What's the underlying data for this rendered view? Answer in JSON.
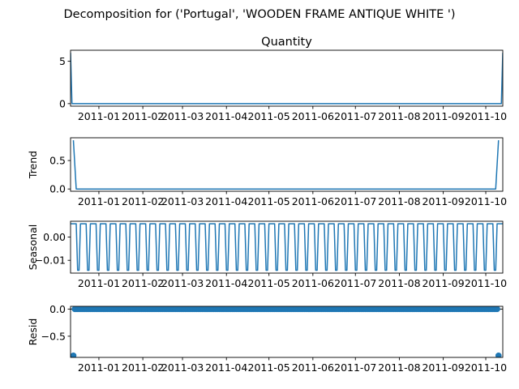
{
  "suptitle": "Decomposition for ('Portugal', 'WOODEN FRAME ANTIQUE WHITE ')",
  "colors": {
    "series": "#1f77b4",
    "axis": "#000000"
  },
  "chart_data": [
    {
      "type": "line",
      "title": "Quantity",
      "ylabel": "",
      "xlim": [
        "2010-12-12",
        "2011-10-13"
      ],
      "ylim": [
        -0.3,
        6.3
      ],
      "yticks": [
        {
          "value": 0,
          "label": "0"
        },
        {
          "value": 5,
          "label": "5"
        }
      ],
      "xticks": [
        {
          "date": "2011-01-01",
          "label": "2011-01"
        },
        {
          "date": "2011-02-01",
          "label": "2011-02"
        },
        {
          "date": "2011-03-01",
          "label": "2011-03"
        },
        {
          "date": "2011-04-01",
          "label": "2011-04"
        },
        {
          "date": "2011-05-01",
          "label": "2011-05"
        },
        {
          "date": "2011-06-01",
          "label": "2011-06"
        },
        {
          "date": "2011-07-01",
          "label": "2011-07"
        },
        {
          "date": "2011-08-01",
          "label": "2011-08"
        },
        {
          "date": "2011-09-01",
          "label": "2011-09"
        },
        {
          "date": "2011-10-01",
          "label": "2011-10"
        }
      ],
      "series": [
        {
          "x": [
            "2010-12-12",
            "2010-12-13",
            "2011-10-12",
            "2011-10-13"
          ],
          "y": [
            6,
            0,
            0,
            6
          ]
        }
      ]
    },
    {
      "type": "line",
      "title": "",
      "ylabel": "Trend",
      "xlim": [
        "2010-12-12",
        "2011-10-13"
      ],
      "ylim": [
        -0.04,
        0.9
      ],
      "yticks": [
        {
          "value": 0,
          "label": "0.0"
        },
        {
          "value": 0.5,
          "label": "0.5"
        }
      ],
      "xticks": "same",
      "series": [
        {
          "x": [
            "2010-12-14",
            "2010-12-16",
            "2011-10-08",
            "2011-10-10"
          ],
          "y": [
            0.857,
            0,
            0,
            0.857
          ]
        }
      ]
    },
    {
      "type": "line",
      "title": "",
      "ylabel": "Seasonal",
      "xlim": [
        "2010-12-12",
        "2011-10-13"
      ],
      "ylim": [
        -0.0155,
        0.0068
      ],
      "yticks": [
        {
          "value": 0,
          "label": "0.00"
        },
        {
          "value": -0.01,
          "label": "−0.01"
        }
      ],
      "xticks": "same",
      "seasonal_pattern": [
        0.0057,
        0.0057,
        0.0057,
        0.0057,
        0.0057,
        -0.0143,
        -0.0143
      ],
      "series": [
        {
          "x_start": "2010-12-12",
          "x_end": "2011-10-13",
          "step_days": 1
        }
      ]
    },
    {
      "type": "scatter",
      "title": "",
      "ylabel": "Resid",
      "xlim": [
        "2010-12-12",
        "2011-10-13"
      ],
      "ylim": [
        -0.89,
        0.05
      ],
      "yticks": [
        {
          "value": 0,
          "label": "0.0"
        },
        {
          "value": -0.5,
          "label": "−0.5"
        }
      ],
      "xticks": "same",
      "series": [
        {
          "x_start": "2010-12-14",
          "x_end": "2011-10-10",
          "step_days": 1,
          "y_default": 0.0,
          "outliers": [
            {
              "x": "2010-12-14",
              "y": -0.857
            },
            {
              "x": "2011-10-10",
              "y": -0.857
            }
          ]
        }
      ]
    }
  ]
}
